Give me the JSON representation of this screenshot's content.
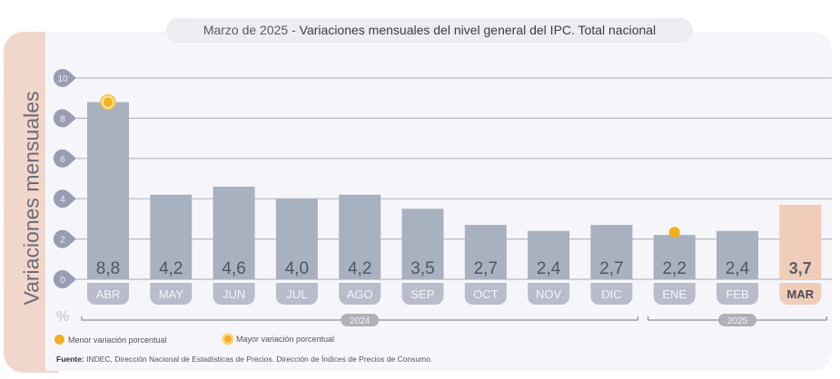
{
  "title": {
    "prefix": "Marzo de 2025",
    "separator": " - ",
    "main": "Variaciones mensuales del nivel general del IPC. Total nacional"
  },
  "unit": "%",
  "legend": {
    "min_label": "Menor variación porcentual",
    "max_label": "Mayor variación porcentual"
  },
  "source": {
    "label": "Fuente:",
    "text": " INDEC, Dirección Nacional de Estadísticas de Precios. Dirección de Índices de Precios de Consumo."
  },
  "colors": {
    "bar": "#a7b1bf",
    "highlight_bar": "#efcdb9",
    "marker": "#f0b020",
    "strip": "#f1d6cb"
  },
  "chart_data": {
    "type": "bar",
    "ylabel": "Variaciones mensuales",
    "ylim": [
      0,
      10
    ],
    "yticks": [
      0,
      2,
      4,
      6,
      8,
      10
    ],
    "grid": true,
    "categories": [
      "ABR",
      "MAY",
      "JUN",
      "JUL",
      "AGO",
      "SEP",
      "OCT",
      "NOV",
      "DIC",
      "ENE",
      "FEB",
      "MAR"
    ],
    "values": [
      8.8,
      4.2,
      4.6,
      4.0,
      4.2,
      3.5,
      2.7,
      2.4,
      2.7,
      2.2,
      2.4,
      3.7
    ],
    "value_labels": [
      "8,8",
      "4,2",
      "4,6",
      "4,0",
      "4,2",
      "3,5",
      "2,7",
      "2,4",
      "2,7",
      "2,2",
      "2,4",
      "3,7"
    ],
    "highlight": "MAR",
    "max_marker": "ABR",
    "min_marker": "ENE",
    "year_groups": [
      {
        "label": "2024",
        "from": "ABR",
        "to": "DIC"
      },
      {
        "label": "2025",
        "from": "ENE",
        "to": "MAR"
      }
    ]
  }
}
